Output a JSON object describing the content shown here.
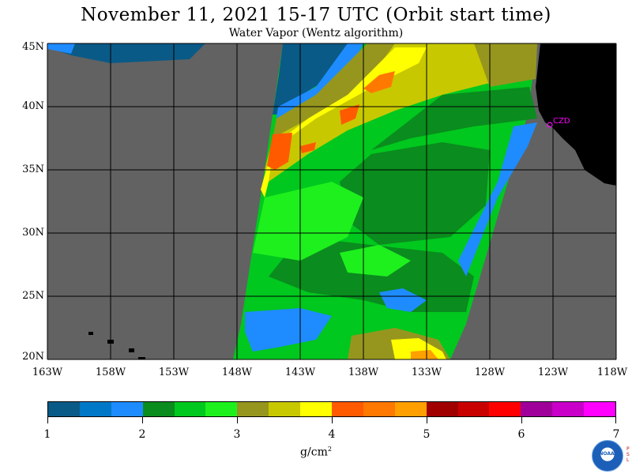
{
  "header": {
    "title": "November 11, 2021  15-17 UTC  (Orbit start time)",
    "subtitle": "Water Vapor (Wentz algorithm)"
  },
  "map": {
    "lat_labels": [
      "45N",
      "40N",
      "35N",
      "30N",
      "25N",
      "20N"
    ],
    "lon_labels": [
      "163W",
      "158W",
      "153W",
      "148W",
      "143W",
      "138W",
      "133W",
      "128W",
      "123W",
      "118W"
    ],
    "station_marker": "CZD",
    "colors": {
      "no_data": "#626262",
      "land": "#000000",
      "grid": "#000000",
      "marker": "#ff00ff"
    }
  },
  "legend": {
    "tick_labels": [
      "1",
      "2",
      "3",
      "4",
      "5",
      "6",
      "7"
    ],
    "units": "g/cm",
    "units_superscript": "2",
    "colors": [
      "#0a5a87",
      "#0078c8",
      "#1e8cff",
      "#0a8c1e",
      "#00c81e",
      "#1ef01e",
      "#96961e",
      "#c8c800",
      "#ffff00",
      "#ff5a00",
      "#ff7800",
      "#ffa000",
      "#a00000",
      "#c80000",
      "#ff0000",
      "#a0009a",
      "#c800c8",
      "#ff00ff"
    ]
  },
  "branding": {
    "logo": "NOAA",
    "psl_letters": [
      "P",
      "S",
      "L"
    ]
  }
}
